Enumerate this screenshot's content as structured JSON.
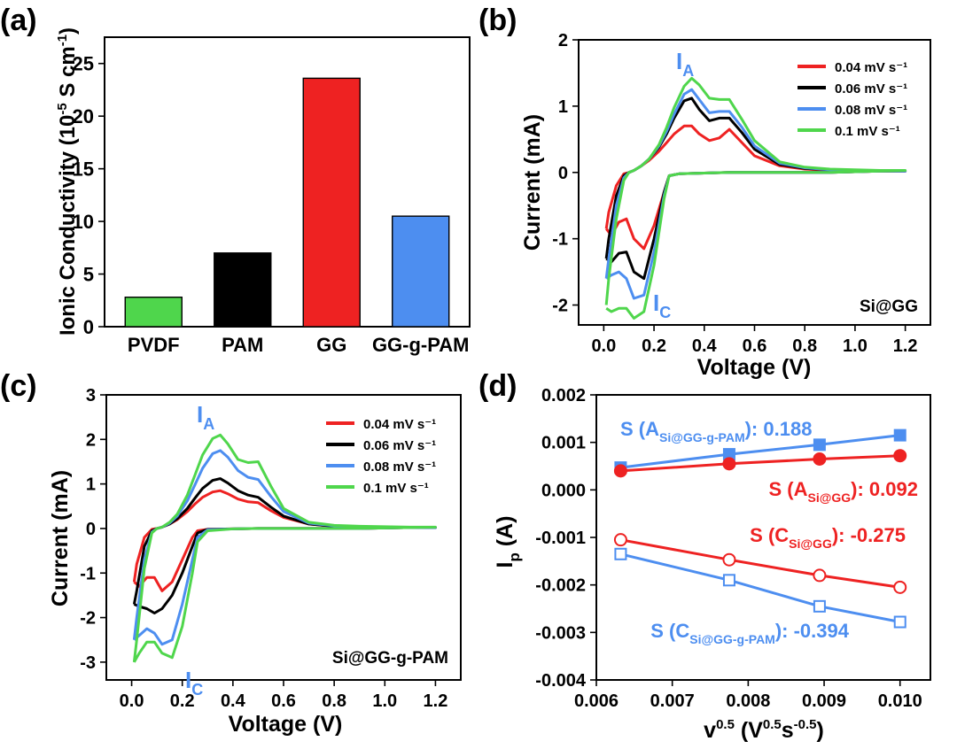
{
  "chart_data": [
    {
      "panel": "(a)",
      "type": "bar",
      "title": "",
      "xlabel": "",
      "ylabel": "Ionic Conductivity (10⁻⁵ S cm⁻¹)",
      "categories": [
        "PVDF",
        "PAM",
        "GG",
        "GG-g-PAM"
      ],
      "values": [
        2.8,
        7.0,
        23.6,
        10.5
      ],
      "colors": [
        "#4fd64c",
        "#000000",
        "#ee2222",
        "#4d8ef0"
      ],
      "ylim": [
        0,
        27.5
      ],
      "yticks": [
        0,
        5,
        10,
        15,
        20,
        25
      ],
      "ytick_labels": [
        "0",
        "5",
        "10",
        "15",
        "20",
        "25"
      ]
    },
    {
      "panel": "(b)",
      "type": "line",
      "xlabel": "Voltage (V)",
      "ylabel": "Current (mA)",
      "xlim": [
        -0.1,
        1.3
      ],
      "ylim": [
        -2.3,
        2.0
      ],
      "xticks": [
        0.0,
        0.2,
        0.4,
        0.6,
        0.8,
        1.0,
        1.2
      ],
      "xtick_labels": [
        "0.0",
        "0.2",
        "0.4",
        "0.6",
        "0.8",
        "1.0",
        "1.2"
      ],
      "yticks": [
        -2,
        -1,
        0,
        1,
        2
      ],
      "ytick_labels": [
        "-2",
        "-1",
        "0",
        "1",
        "2"
      ],
      "annotation_peak_a": "I",
      "annotation_peak_a_sub": "A",
      "annotation_peak_c": "I",
      "annotation_peak_c_sub": "C",
      "sample_label": "Si@GG",
      "series": [
        {
          "name": "0.04 mV s⁻¹",
          "color": "#ee2222",
          "x": [
            0.01,
            0.02,
            0.05,
            0.08,
            0.1,
            0.12,
            0.15,
            0.18,
            0.22,
            0.25,
            0.28,
            0.32,
            0.35,
            0.38,
            0.42,
            0.46,
            0.5,
            0.55,
            0.6,
            0.7,
            0.8,
            0.9,
            1.0,
            1.1,
            1.2,
            1.2,
            1.1,
            1.0,
            0.9,
            0.8,
            0.7,
            0.6,
            0.5,
            0.4,
            0.3,
            0.26,
            0.24,
            0.2,
            0.16,
            0.12,
            0.09,
            0.06,
            0.03,
            0.01
          ],
          "y": [
            -0.85,
            -0.6,
            -0.2,
            -0.02,
            0.0,
            0.03,
            0.1,
            0.18,
            0.32,
            0.45,
            0.58,
            0.7,
            0.7,
            0.58,
            0.48,
            0.52,
            0.65,
            0.45,
            0.25,
            0.1,
            0.05,
            0.03,
            0.03,
            0.02,
            0.02,
            0.02,
            0.02,
            0.01,
            0.0,
            0.0,
            0.0,
            0.0,
            0.0,
            -0.01,
            -0.02,
            -0.05,
            -0.3,
            -0.8,
            -1.15,
            -1.0,
            -0.7,
            -0.75,
            -0.95,
            -0.85
          ]
        },
        {
          "name": "0.06 mV s⁻¹",
          "color": "#000000",
          "x": [
            0.01,
            0.02,
            0.05,
            0.08,
            0.1,
            0.12,
            0.15,
            0.18,
            0.22,
            0.25,
            0.28,
            0.32,
            0.35,
            0.38,
            0.42,
            0.46,
            0.5,
            0.55,
            0.6,
            0.7,
            0.8,
            0.9,
            1.0,
            1.1,
            1.2,
            1.2,
            1.1,
            1.0,
            0.9,
            0.8,
            0.7,
            0.6,
            0.5,
            0.4,
            0.3,
            0.26,
            0.24,
            0.2,
            0.16,
            0.12,
            0.09,
            0.06,
            0.03,
            0.01
          ],
          "y": [
            -1.3,
            -1.0,
            -0.35,
            -0.05,
            0.0,
            0.03,
            0.1,
            0.2,
            0.38,
            0.58,
            0.82,
            1.08,
            1.12,
            0.95,
            0.78,
            0.82,
            0.82,
            0.6,
            0.35,
            0.12,
            0.06,
            0.04,
            0.03,
            0.02,
            0.02,
            0.02,
            0.02,
            0.01,
            0.0,
            0.0,
            0.0,
            0.0,
            0.0,
            -0.01,
            -0.02,
            -0.05,
            -0.3,
            -1.0,
            -1.6,
            -1.5,
            -1.2,
            -1.22,
            -1.35,
            -1.3
          ]
        },
        {
          "name": "0.08 mV s⁻¹",
          "color": "#4d8ef0",
          "x": [
            0.01,
            0.02,
            0.05,
            0.08,
            0.1,
            0.12,
            0.15,
            0.18,
            0.22,
            0.25,
            0.28,
            0.32,
            0.35,
            0.38,
            0.42,
            0.46,
            0.5,
            0.55,
            0.6,
            0.7,
            0.8,
            0.9,
            1.0,
            1.1,
            1.2,
            1.2,
            1.1,
            1.0,
            0.9,
            0.8,
            0.7,
            0.6,
            0.5,
            0.4,
            0.3,
            0.26,
            0.24,
            0.2,
            0.16,
            0.12,
            0.09,
            0.06,
            0.03,
            0.01
          ],
          "y": [
            -1.6,
            -1.3,
            -0.5,
            -0.08,
            0.0,
            0.03,
            0.1,
            0.2,
            0.4,
            0.62,
            0.88,
            1.18,
            1.25,
            1.1,
            0.9,
            0.92,
            0.92,
            0.68,
            0.4,
            0.14,
            0.07,
            0.04,
            0.03,
            0.02,
            0.02,
            0.02,
            0.02,
            0.01,
            0.0,
            0.0,
            0.0,
            0.0,
            0.0,
            -0.01,
            -0.02,
            -0.05,
            -0.35,
            -1.2,
            -1.85,
            -1.9,
            -1.6,
            -1.5,
            -1.55,
            -1.6
          ]
        },
        {
          "name": "0.1 mV s⁻¹",
          "color": "#4fd64c",
          "x": [
            0.01,
            0.02,
            0.05,
            0.08,
            0.1,
            0.12,
            0.15,
            0.18,
            0.22,
            0.25,
            0.28,
            0.32,
            0.35,
            0.38,
            0.42,
            0.46,
            0.5,
            0.55,
            0.6,
            0.7,
            0.8,
            0.9,
            1.0,
            1.1,
            1.2,
            1.2,
            1.1,
            1.0,
            0.9,
            0.8,
            0.7,
            0.6,
            0.5,
            0.4,
            0.3,
            0.26,
            0.24,
            0.2,
            0.16,
            0.12,
            0.09,
            0.06,
            0.03,
            0.01
          ],
          "y": [
            -2.0,
            -1.6,
            -0.7,
            -0.12,
            0.0,
            0.03,
            0.1,
            0.2,
            0.42,
            0.68,
            0.98,
            1.3,
            1.42,
            1.32,
            1.12,
            1.1,
            1.1,
            0.8,
            0.48,
            0.16,
            0.08,
            0.05,
            0.04,
            0.03,
            0.03,
            0.03,
            0.02,
            0.01,
            0.0,
            0.0,
            0.0,
            0.0,
            0.0,
            -0.01,
            -0.02,
            -0.05,
            -0.4,
            -1.4,
            -2.1,
            -2.2,
            -2.05,
            -2.05,
            -2.1,
            -2.05
          ]
        }
      ]
    },
    {
      "panel": "(c)",
      "type": "line",
      "xlabel": "Voltage (V)",
      "ylabel": "Current (mA)",
      "xlim": [
        -0.1,
        1.3
      ],
      "ylim": [
        -3.4,
        3.0
      ],
      "xticks": [
        0.0,
        0.2,
        0.4,
        0.6,
        0.8,
        1.0,
        1.2
      ],
      "xtick_labels": [
        "0.0",
        "0.2",
        "0.4",
        "0.6",
        "0.8",
        "1.0",
        "1.2"
      ],
      "yticks": [
        -3,
        -2,
        -1,
        0,
        1,
        2,
        3
      ],
      "ytick_labels": [
        "-3",
        "-2",
        "-1",
        "0",
        "1",
        "2",
        "3"
      ],
      "annotation_peak_a": "I",
      "annotation_peak_a_sub": "A",
      "annotation_peak_c": "I",
      "annotation_peak_c_sub": "C",
      "sample_label": "Si@GG-g-PAM",
      "series": [
        {
          "name": "0.04 mV s⁻¹",
          "color": "#ee2222",
          "x": [
            0.01,
            0.02,
            0.05,
            0.08,
            0.1,
            0.12,
            0.15,
            0.18,
            0.22,
            0.25,
            0.28,
            0.32,
            0.35,
            0.38,
            0.42,
            0.46,
            0.5,
            0.55,
            0.6,
            0.7,
            0.8,
            0.9,
            1.0,
            1.1,
            1.2,
            1.2,
            1.1,
            1.0,
            0.9,
            0.8,
            0.7,
            0.6,
            0.5,
            0.4,
            0.3,
            0.26,
            0.24,
            0.2,
            0.16,
            0.12,
            0.09,
            0.06,
            0.03,
            0.01
          ],
          "y": [
            -1.2,
            -0.8,
            -0.2,
            -0.02,
            0.0,
            0.03,
            0.1,
            0.2,
            0.38,
            0.55,
            0.7,
            0.82,
            0.85,
            0.78,
            0.66,
            0.6,
            0.58,
            0.4,
            0.25,
            0.1,
            0.05,
            0.04,
            0.03,
            0.02,
            0.02,
            0.02,
            0.02,
            0.01,
            0.0,
            0.0,
            0.0,
            0.0,
            0.0,
            -0.01,
            -0.02,
            -0.05,
            -0.2,
            -0.7,
            -1.2,
            -1.4,
            -1.1,
            -1.1,
            -1.3,
            -1.2
          ]
        },
        {
          "name": "0.06 mV s⁻¹",
          "color": "#000000",
          "x": [
            0.01,
            0.02,
            0.05,
            0.08,
            0.1,
            0.12,
            0.15,
            0.18,
            0.22,
            0.25,
            0.28,
            0.32,
            0.35,
            0.38,
            0.42,
            0.46,
            0.5,
            0.55,
            0.6,
            0.7,
            0.8,
            0.9,
            1.0,
            1.1,
            1.2,
            1.2,
            1.1,
            1.0,
            0.9,
            0.8,
            0.7,
            0.6,
            0.5,
            0.4,
            0.3,
            0.26,
            0.24,
            0.2,
            0.16,
            0.12,
            0.09,
            0.06,
            0.03,
            0.01
          ],
          "y": [
            -1.7,
            -1.4,
            -0.4,
            -0.05,
            0.0,
            0.03,
            0.1,
            0.22,
            0.45,
            0.68,
            0.9,
            1.08,
            1.12,
            1.02,
            0.85,
            0.75,
            0.7,
            0.48,
            0.28,
            0.1,
            0.05,
            0.04,
            0.03,
            0.02,
            0.02,
            0.02,
            0.02,
            0.01,
            0.0,
            0.0,
            0.0,
            0.0,
            0.0,
            -0.01,
            -0.02,
            -0.1,
            -0.4,
            -1.0,
            -1.5,
            -1.8,
            -1.9,
            -1.8,
            -1.75,
            -1.7
          ]
        },
        {
          "name": "0.08 mV s⁻¹",
          "color": "#4d8ef0",
          "x": [
            0.01,
            0.02,
            0.05,
            0.08,
            0.1,
            0.12,
            0.15,
            0.18,
            0.22,
            0.25,
            0.28,
            0.32,
            0.35,
            0.38,
            0.42,
            0.46,
            0.5,
            0.55,
            0.6,
            0.7,
            0.8,
            0.9,
            1.0,
            1.1,
            1.2,
            1.2,
            1.1,
            1.0,
            0.9,
            0.8,
            0.7,
            0.6,
            0.5,
            0.4,
            0.3,
            0.26,
            0.24,
            0.2,
            0.16,
            0.12,
            0.09,
            0.06,
            0.03,
            0.01
          ],
          "y": [
            -2.5,
            -2.0,
            -0.7,
            -0.08,
            0.0,
            0.03,
            0.12,
            0.28,
            0.62,
            0.98,
            1.35,
            1.68,
            1.75,
            1.6,
            1.3,
            1.15,
            1.1,
            0.72,
            0.38,
            0.12,
            0.06,
            0.04,
            0.03,
            0.02,
            0.02,
            0.02,
            0.02,
            0.01,
            0.0,
            0.0,
            0.0,
            0.0,
            0.0,
            -0.01,
            -0.03,
            -0.2,
            -0.7,
            -1.7,
            -2.5,
            -2.6,
            -2.35,
            -2.25,
            -2.4,
            -2.5
          ]
        },
        {
          "name": "0.1 mV s⁻¹",
          "color": "#4fd64c",
          "x": [
            0.01,
            0.02,
            0.05,
            0.08,
            0.1,
            0.12,
            0.15,
            0.18,
            0.22,
            0.25,
            0.28,
            0.32,
            0.35,
            0.38,
            0.42,
            0.46,
            0.5,
            0.55,
            0.6,
            0.7,
            0.8,
            0.9,
            1.0,
            1.1,
            1.2,
            1.2,
            1.1,
            1.0,
            0.9,
            0.8,
            0.7,
            0.6,
            0.5,
            0.4,
            0.3,
            0.26,
            0.24,
            0.2,
            0.16,
            0.12,
            0.09,
            0.06,
            0.03,
            0.01
          ],
          "y": [
            -3.0,
            -2.5,
            -0.9,
            -0.1,
            0.0,
            0.03,
            0.14,
            0.32,
            0.75,
            1.2,
            1.65,
            2.02,
            2.1,
            1.9,
            1.55,
            1.48,
            1.5,
            0.95,
            0.45,
            0.14,
            0.07,
            0.05,
            0.04,
            0.03,
            0.03,
            0.03,
            0.02,
            0.01,
            0.0,
            0.0,
            0.0,
            0.0,
            0.0,
            -0.01,
            -0.05,
            -0.3,
            -1.0,
            -2.2,
            -2.9,
            -2.8,
            -2.55,
            -2.55,
            -2.8,
            -3.0
          ]
        }
      ]
    },
    {
      "panel": "(d)",
      "type": "scatter",
      "xlabel": "v",
      "xlabel_sup": "0.5",
      "xlabel_unit": "(V",
      "xlabel_unit_sup1": "0.5",
      "xlabel_unit_mid": "s",
      "xlabel_unit_sup2": "-0.5",
      "xlabel_unit_end": ")",
      "ylabel": "I",
      "ylabel_sub": "p",
      "ylabel_unit": " (A)",
      "xlim": [
        0.006,
        0.0104
      ],
      "ylim": [
        -0.004,
        0.002
      ],
      "xticks": [
        0.006,
        0.007,
        0.008,
        0.009,
        0.01
      ],
      "xtick_labels": [
        "0.006",
        "0.007",
        "0.008",
        "0.009",
        "0.010"
      ],
      "yticks": [
        0.002,
        0.001,
        0.0,
        -0.001,
        -0.002,
        -0.003,
        -0.004
      ],
      "ytick_labels": [
        "0.002",
        "0.001",
        "0.000",
        "-0.001",
        "-0.002",
        "-0.003",
        "-0.004"
      ],
      "x": [
        0.00632,
        0.00775,
        0.00894,
        0.01
      ],
      "series": [
        {
          "name": "A Si@GG-g-PAM",
          "color": "#4d8ef0",
          "marker": "square-filled",
          "values": [
            0.00047,
            0.00075,
            0.00095,
            0.00115
          ]
        },
        {
          "name": "A Si@GG",
          "color": "#ee2222",
          "marker": "circle-filled",
          "values": [
            0.0004,
            0.00055,
            0.00065,
            0.00072
          ]
        },
        {
          "name": "C Si@GG",
          "color": "#ee2222",
          "marker": "circle-open",
          "values": [
            -0.00105,
            -0.00147,
            -0.0018,
            -0.00205
          ]
        },
        {
          "name": "C Si@GG-g-PAM",
          "color": "#4d8ef0",
          "marker": "square-open",
          "values": [
            -0.00135,
            -0.0019,
            -0.00245,
            -0.00278
          ]
        }
      ],
      "annotations": [
        {
          "prefix": "S (A",
          "sub": "Si@GG-g-PAM",
          "suffix": "):  0.188",
          "color": "#4d8ef0"
        },
        {
          "prefix": "S (A",
          "sub": "Si@GG",
          "suffix": "):  0.092",
          "color": "#ee2222"
        },
        {
          "prefix": "S (C",
          "sub": "Si@GG",
          "suffix": "):  -0.275",
          "color": "#ee2222"
        },
        {
          "prefix": "S (C",
          "sub": "Si@GG-g-PAM",
          "suffix": "):  -0.394",
          "color": "#4d8ef0"
        }
      ]
    }
  ]
}
